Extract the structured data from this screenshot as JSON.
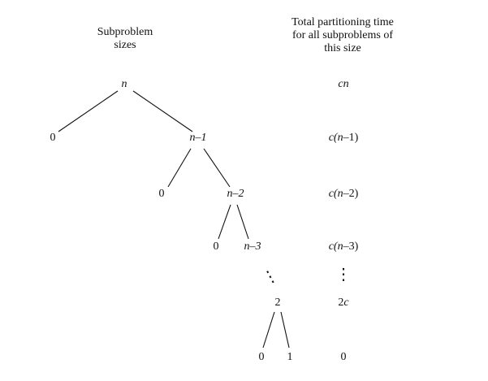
{
  "headers": {
    "left": [
      "Subproblem",
      "sizes"
    ],
    "right": [
      "Total partitioning time",
      "for all subproblems of",
      "this size"
    ]
  },
  "tree": {
    "root": "n",
    "level1": {
      "left": "0",
      "right": "n–1"
    },
    "level2": {
      "left": "0",
      "right": "n–2"
    },
    "level3": {
      "left": "0",
      "right": "n–3"
    },
    "vdots": "⋮",
    "level4": "2",
    "level5": {
      "left": "0",
      "right": "1"
    }
  },
  "costs": {
    "c0_pre": "",
    "c0_var": "cn",
    "c0_post": "",
    "c1_pre": "c(",
    "c1_var": "n",
    "c1_post": "–1)",
    "c2_pre": "c(",
    "c2_var": "n",
    "c2_post": "–2)",
    "c3_pre": "c(",
    "c3_var": "n",
    "c3_post": "–3)",
    "vdots": "⋮",
    "c4_pre": "2",
    "c4_var": "c",
    "c4_post": "",
    "c5": "0"
  }
}
